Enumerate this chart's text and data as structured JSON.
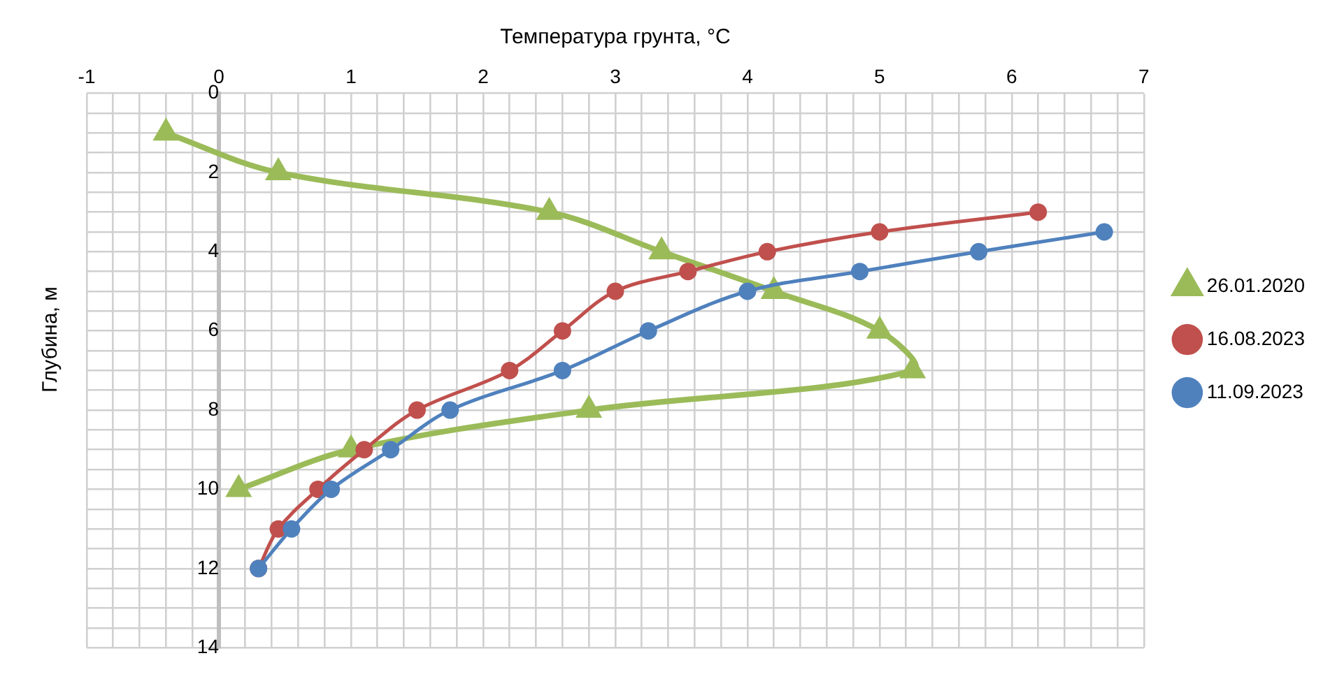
{
  "chart_data": {
    "type": "line",
    "xlabel": "Температура грунта, °C",
    "ylabel": "Глубина, м",
    "xlim": [
      -1,
      7
    ],
    "ylim": [
      14,
      0
    ],
    "xticks": [
      -1,
      {
        "value": -0.8,
        "label": null
      },
      {
        "value": -0.6,
        "label": null
      },
      {
        "value": -0.4,
        "label": null
      },
      {
        "value": -0.2,
        "label": null
      },
      0,
      {
        "value": 0.2,
        "label": null
      },
      {
        "value": 0.4,
        "label": null
      },
      {
        "value": 0.6,
        "label": null
      },
      {
        "value": 0.8,
        "label": null
      },
      1,
      {
        "value": 1.2,
        "label": null
      },
      {
        "value": 1.4,
        "label": null
      },
      {
        "value": 1.6,
        "label": null
      },
      {
        "value": 1.8,
        "label": null
      },
      2,
      {
        "value": 2.2,
        "label": null
      },
      {
        "value": 2.4,
        "label": null
      },
      {
        "value": 2.6,
        "label": null
      },
      {
        "value": 2.8,
        "label": null
      },
      3,
      {
        "value": 3.2,
        "label": null
      },
      {
        "value": 3.4,
        "label": null
      },
      {
        "value": 3.6,
        "label": null
      },
      {
        "value": 3.8,
        "label": null
      },
      4,
      {
        "value": 4.2,
        "label": null
      },
      {
        "value": 4.4,
        "label": null
      },
      {
        "value": 4.6,
        "label": null
      },
      {
        "value": 4.8,
        "label": null
      },
      5,
      {
        "value": 5.2,
        "label": null
      },
      {
        "value": 5.4,
        "label": null
      },
      {
        "value": 5.6,
        "label": null
      },
      {
        "value": 5.8,
        "label": null
      },
      6,
      {
        "value": 6.2,
        "label": null
      },
      {
        "value": 6.4,
        "label": null
      },
      {
        "value": 6.6,
        "label": null
      },
      {
        "value": 6.8,
        "label": null
      },
      7
    ],
    "yticks": [
      0,
      {
        "value": 0.5,
        "label": null
      },
      {
        "value": 1,
        "label": null
      },
      {
        "value": 1.5,
        "label": null
      },
      2,
      {
        "value": 2.5,
        "label": null
      },
      {
        "value": 3,
        "label": null
      },
      {
        "value": 3.5,
        "label": null
      },
      4,
      {
        "value": 4.5,
        "label": null
      },
      {
        "value": 5,
        "label": null
      },
      {
        "value": 5.5,
        "label": null
      },
      6,
      {
        "value": 6.5,
        "label": null
      },
      {
        "value": 7,
        "label": null
      },
      {
        "value": 7.5,
        "label": null
      },
      8,
      {
        "value": 8.5,
        "label": null
      },
      {
        "value": 9,
        "label": null
      },
      {
        "value": 9.5,
        "label": null
      },
      10,
      {
        "value": 10.5,
        "label": null
      },
      {
        "value": 11,
        "label": null
      },
      {
        "value": 11.5,
        "label": null
      },
      12,
      {
        "value": 12.5,
        "label": null
      },
      {
        "value": 13,
        "label": null
      },
      {
        "value": 13.5,
        "label": null
      },
      14
    ],
    "grid": true,
    "legend": "right",
    "series": [
      {
        "name": "26.01.2020",
        "color": "#9bbb59",
        "marker": "triangle",
        "x": [
          -0.4,
          0.45,
          2.5,
          3.35,
          4.2,
          5.0,
          5.25,
          2.8,
          1.0,
          0.15
        ],
        "values": [
          1,
          2,
          3,
          4,
          5,
          6,
          7,
          8,
          9,
          10
        ]
      },
      {
        "name": "16.08.2023",
        "color": "#c0504d",
        "marker": "circle",
        "x": [
          6.2,
          5.0,
          4.15,
          3.55,
          3.0,
          2.6,
          2.2,
          1.5,
          1.1,
          0.75,
          0.45,
          0.3
        ],
        "values": [
          3,
          3.5,
          4,
          4.5,
          5,
          6,
          7,
          8,
          9,
          10,
          11,
          12
        ]
      },
      {
        "name": "11.09.2023",
        "color": "#4f81bd",
        "marker": "circle",
        "x": [
          6.7,
          5.75,
          4.85,
          4.0,
          3.25,
          2.6,
          1.75,
          1.3,
          0.85,
          0.55,
          0.3
        ],
        "values": [
          3.5,
          4,
          4.5,
          5,
          6,
          7,
          8,
          9,
          10,
          11,
          12
        ]
      }
    ]
  }
}
